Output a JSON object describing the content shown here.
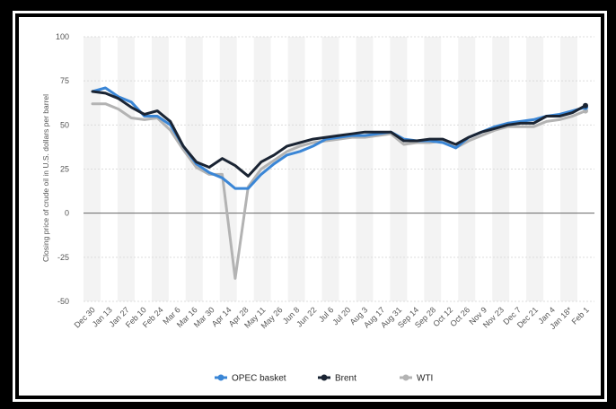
{
  "chart_data": {
    "type": "line",
    "ylabel": "Closing price of crude oil in U.S. dollars per barrel",
    "xlabel": "",
    "ylim": [
      -50,
      100
    ],
    "yticks": [
      100,
      75,
      50,
      25,
      0,
      -25,
      -50
    ],
    "grid": true,
    "legend_position": "bottom-center",
    "x_tick_labels": [
      "Dec 30",
      "Jan 13",
      "Jan 27",
      "Feb 10",
      "Feb 24",
      "Mar 6",
      "Mar 16",
      "Mar 30",
      "Apr 14",
      "Apr 28",
      "May 11",
      "May 26",
      "Jun 8",
      "Jun 22",
      "Jul 6",
      "Jul 20",
      "Aug 3",
      "Aug 17",
      "Aug 31",
      "Sep 14",
      "Sep 28",
      "Oct 12",
      "Oct 26",
      "Nov 9",
      "Nov 23",
      "Dec 7",
      "Dec 21",
      "Jan 4",
      "Jan 18*",
      "Feb 1"
    ],
    "series": [
      {
        "name": "OPEC basket",
        "color": "#3a86d6",
        "values": [
          69,
          71,
          66,
          63,
          55,
          55,
          50,
          38,
          28,
          23,
          20,
          14,
          14,
          22,
          28,
          33,
          35,
          38,
          42,
          43,
          44,
          44,
          45,
          46,
          42,
          41,
          41,
          40,
          37,
          43,
          46,
          49,
          51,
          52,
          53,
          55,
          56,
          58,
          60
        ]
      },
      {
        "name": "Brent",
        "color": "#1a2433",
        "values": [
          69,
          68,
          65,
          60,
          56,
          58,
          52,
          38,
          29,
          26,
          31,
          27,
          21,
          29,
          33,
          38,
          40,
          42,
          43,
          44,
          45,
          46,
          46,
          46,
          41,
          41,
          42,
          42,
          39,
          43,
          46,
          48,
          50,
          51,
          51,
          55,
          55,
          57,
          61
        ]
      },
      {
        "name": "WTI",
        "color": "#b3b3b3",
        "values": [
          62,
          62,
          59,
          54,
          53,
          54,
          47,
          36,
          26,
          22,
          22,
          -37,
          15,
          25,
          30,
          35,
          38,
          40,
          41,
          42,
          43,
          43,
          44,
          45,
          39,
          40,
          40,
          41,
          37,
          41,
          44,
          47,
          49,
          49,
          49,
          52,
          53,
          55,
          58
        ]
      }
    ]
  }
}
